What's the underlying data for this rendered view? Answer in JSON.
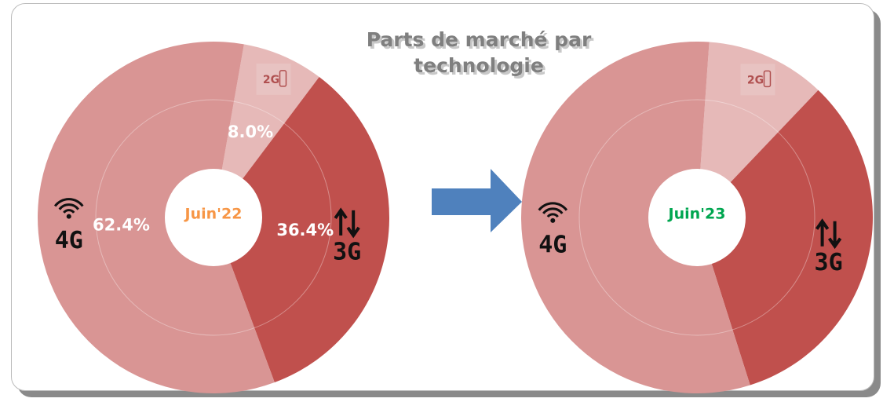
{
  "title": "Parts de marché par technologie",
  "chart_data": [
    {
      "type": "donut",
      "center_label": "Juin'22",
      "categories": [
        "2G",
        "3G",
        "4G"
      ],
      "values": [
        8.0,
        36.4,
        62.4
      ],
      "value_labels": [
        "8.0%",
        "36.4%",
        "62.4%"
      ],
      "colors": [
        "#e6b9b8",
        "#c0504d",
        "#d99594"
      ],
      "center_color": "#f79646"
    },
    {
      "type": "donut",
      "center_label": "Juin'23",
      "categories": [
        "2G",
        "3G",
        "4G"
      ],
      "values": [
        11,
        33,
        56
      ],
      "colors": [
        "#e6b9b8",
        "#c0504d",
        "#d99594"
      ],
      "center_color": "#00a650"
    }
  ]
}
